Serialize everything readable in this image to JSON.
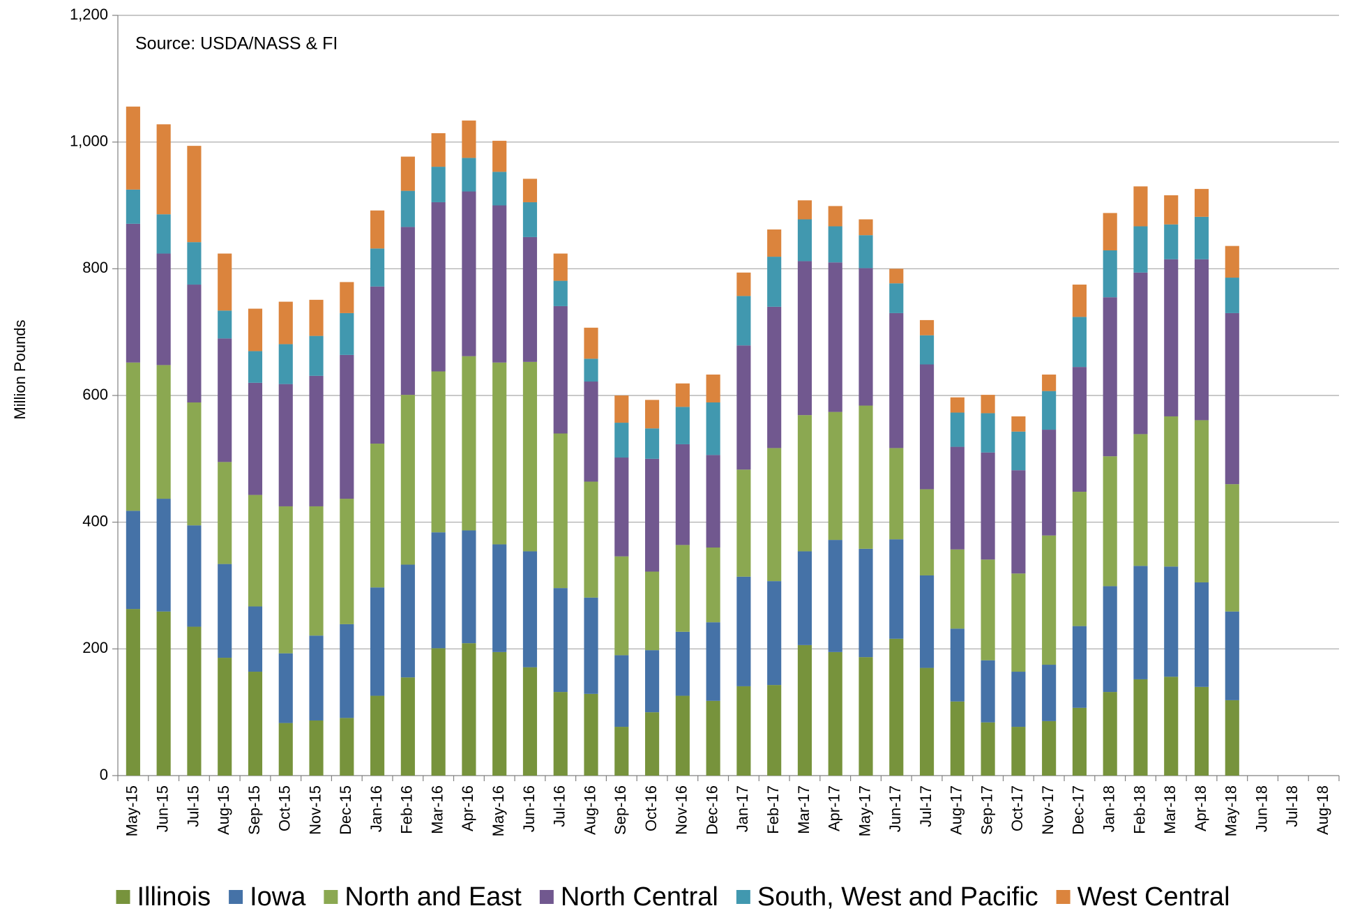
{
  "chart_data": {
    "type": "stacked_bar",
    "annotation": "Source: USDA/NASS & FI",
    "y_label": "Million Pounds",
    "categories": [
      "May-15",
      "Jun-15",
      "Jul-15",
      "Aug-15",
      "Sep-15",
      "Oct-15",
      "Nov-15",
      "Dec-15",
      "Jan-16",
      "Feb-16",
      "Mar-16",
      "Apr-16",
      "May-16",
      "Jun-16",
      "Jul-16",
      "Aug-16",
      "Sep-16",
      "Oct-16",
      "Nov-16",
      "Dec-16",
      "Jan-17",
      "Feb-17",
      "Mar-17",
      "Apr-17",
      "May-17",
      "Jun-17",
      "Jul-17",
      "Aug-17",
      "Sep-17",
      "Oct-17",
      "Nov-17",
      "Dec-17",
      "Jan-18",
      "Feb-18",
      "Mar-18",
      "Apr-18",
      "May-18",
      "Jun-18",
      "Jul-18",
      "Aug-18"
    ],
    "series": [
      {
        "name": "Illinois",
        "color": "#77933c",
        "values": [
          263,
          259,
          235,
          186,
          164,
          83,
          87,
          91,
          126,
          155,
          201,
          209,
          195,
          171,
          132,
          129,
          77,
          100,
          126,
          118,
          141,
          143,
          206,
          195,
          187,
          216,
          170,
          117,
          84,
          77,
          86,
          107,
          132,
          152,
          156,
          140,
          119,
          null,
          null,
          null
        ]
      },
      {
        "name": "Iowa",
        "color": "#4572a7",
        "values": [
          155,
          178,
          160,
          148,
          103,
          110,
          134,
          148,
          171,
          178,
          183,
          178,
          170,
          183,
          164,
          152,
          113,
          98,
          101,
          124,
          173,
          164,
          148,
          177,
          171,
          157,
          146,
          115,
          98,
          87,
          89,
          129,
          167,
          179,
          174,
          165,
          140,
          null,
          null,
          null
        ]
      },
      {
        "name": "North and East",
        "color": "#8ba851",
        "values": [
          234,
          211,
          194,
          161,
          176,
          232,
          204,
          198,
          227,
          268,
          254,
          275,
          287,
          299,
          244,
          183,
          156,
          124,
          137,
          118,
          169,
          210,
          215,
          202,
          226,
          144,
          136,
          125,
          159,
          155,
          204,
          212,
          205,
          208,
          237,
          256,
          201,
          null,
          null,
          null
        ]
      },
      {
        "name": "North Central",
        "color": "#71588f",
        "values": [
          219,
          176,
          186,
          195,
          177,
          193,
          206,
          227,
          248,
          265,
          267,
          260,
          248,
          197,
          201,
          158,
          156,
          178,
          159,
          146,
          196,
          223,
          243,
          236,
          217,
          213,
          197,
          162,
          169,
          163,
          167,
          197,
          251,
          255,
          248,
          254,
          270,
          null,
          null,
          null
        ]
      },
      {
        "name": "South, West and Pacific",
        "color": "#4198af",
        "values": [
          54,
          62,
          67,
          44,
          50,
          63,
          63,
          66,
          60,
          57,
          56,
          53,
          53,
          55,
          40,
          36,
          55,
          48,
          59,
          83,
          78,
          79,
          66,
          57,
          52,
          47,
          46,
          54,
          62,
          61,
          61,
          79,
          74,
          73,
          55,
          67,
          56,
          null,
          null,
          null
        ]
      },
      {
        "name": "West Central",
        "color": "#db843d",
        "values": [
          131,
          142,
          152,
          90,
          67,
          67,
          57,
          49,
          60,
          54,
          53,
          59,
          49,
          37,
          43,
          49,
          43,
          45,
          37,
          44,
          37,
          43,
          30,
          32,
          25,
          23,
          24,
          24,
          29,
          24,
          26,
          51,
          59,
          63,
          46,
          44,
          50,
          null,
          null,
          null
        ]
      }
    ],
    "ylim": [
      0,
      1200
    ],
    "yticks": [
      0,
      200,
      400,
      600,
      800,
      {
        "value": 1000,
        "label": "1,000"
      },
      {
        "value": 1200,
        "label": "1,200"
      }
    ],
    "grid": true,
    "legend": "bottom"
  }
}
